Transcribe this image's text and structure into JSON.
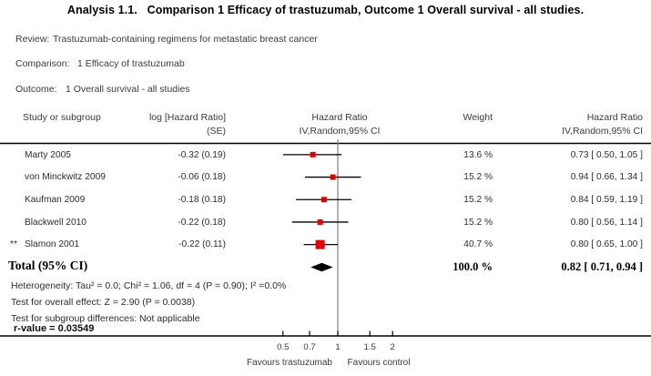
{
  "title": "Analysis 1.1.   Comparison 1 Efficacy of trastuzumab, Outcome 1 Overall survival - all studies.",
  "meta": {
    "review_label": "Review:",
    "review_value": "Trastuzumab-containing regimens for metastatic breast cancer",
    "comparison_label": "Comparison:",
    "comparison_value": "1 Efficacy of trastuzumab",
    "outcome_label": "Outcome:",
    "outcome_value": "1 Overall survival - all studies"
  },
  "columns": {
    "study": "Study or subgroup",
    "log_hr_line1": "log [Hazard Ratio]",
    "log_hr_line2": "(SE)",
    "plot_line1": "Hazard Ratio",
    "plot_line2": "IV,Random,95% CI",
    "weight": "Weight",
    "hr_line1": "Hazard Ratio",
    "hr_line2": "IV,Random,95% CI"
  },
  "chart_data": {
    "type": "forest_plot",
    "x_scale": "log10",
    "null_line": 1,
    "axis_ticks": [
      0.5,
      0.7,
      1,
      1.5,
      2
    ],
    "axis_tick_labels": [
      "0.5",
      "0.7",
      "1",
      "1.5",
      "2"
    ],
    "left_axis_label": "Favours trastuzumab",
    "right_axis_label": "Favours control",
    "marker_color": "#e50000",
    "studies": [
      {
        "footnote_mark": "",
        "name": "Marty 2005",
        "log_hr_se": "-0.32 (0.19)",
        "hr": 0.73,
        "ci_low": 0.5,
        "ci_high": 1.05,
        "weight_pct": 13.6,
        "weight_label": "13.6 %",
        "ci_label": "0.73 [ 0.50, 1.05 ]"
      },
      {
        "footnote_mark": "",
        "name": "von Minckwitz 2009",
        "log_hr_se": "-0.06 (0.18)",
        "hr": 0.94,
        "ci_low": 0.66,
        "ci_high": 1.34,
        "weight_pct": 15.2,
        "weight_label": "15.2 %",
        "ci_label": "0.94 [ 0.66, 1.34 ]"
      },
      {
        "footnote_mark": "",
        "name": "Kaufman 2009",
        "log_hr_se": "-0.18 (0.18)",
        "hr": 0.84,
        "ci_low": 0.59,
        "ci_high": 1.19,
        "weight_pct": 15.2,
        "weight_label": "15.2 %",
        "ci_label": "0.84 [ 0.59, 1.19 ]"
      },
      {
        "footnote_mark": "",
        "name": "Blackwell 2010",
        "log_hr_se": "-0.22 (0.18)",
        "hr": 0.8,
        "ci_low": 0.56,
        "ci_high": 1.14,
        "weight_pct": 15.2,
        "weight_label": "15.2 %",
        "ci_label": "0.80 [ 0.56, 1.14 ]"
      },
      {
        "footnote_mark": "**",
        "name": "Slamon 2001",
        "log_hr_se": "-0.22 (0.11)",
        "hr": 0.8,
        "ci_low": 0.65,
        "ci_high": 1.0,
        "weight_pct": 40.7,
        "weight_label": "40.7 %",
        "ci_label": "0.80 [ 0.65, 1.00 ]"
      }
    ],
    "total": {
      "label": "Total (95% CI)",
      "hr": 0.82,
      "ci_low": 0.71,
      "ci_high": 0.94,
      "weight_label": "100.0 %",
      "ci_label": "0.82 [ 0.71, 0.94 ]"
    }
  },
  "footnotes": {
    "heterogeneity": "Heterogeneity: Tau² = 0.0; Chi² = 1.06, df = 4 (P = 0.90); I² =0.0%",
    "overall_effect": "Test for overall effect: Z = 2.90 (P = 0.0038)",
    "subgroup": "Test for subgroup differences: Not applicable",
    "r_value": "r-value = 0.03549"
  }
}
